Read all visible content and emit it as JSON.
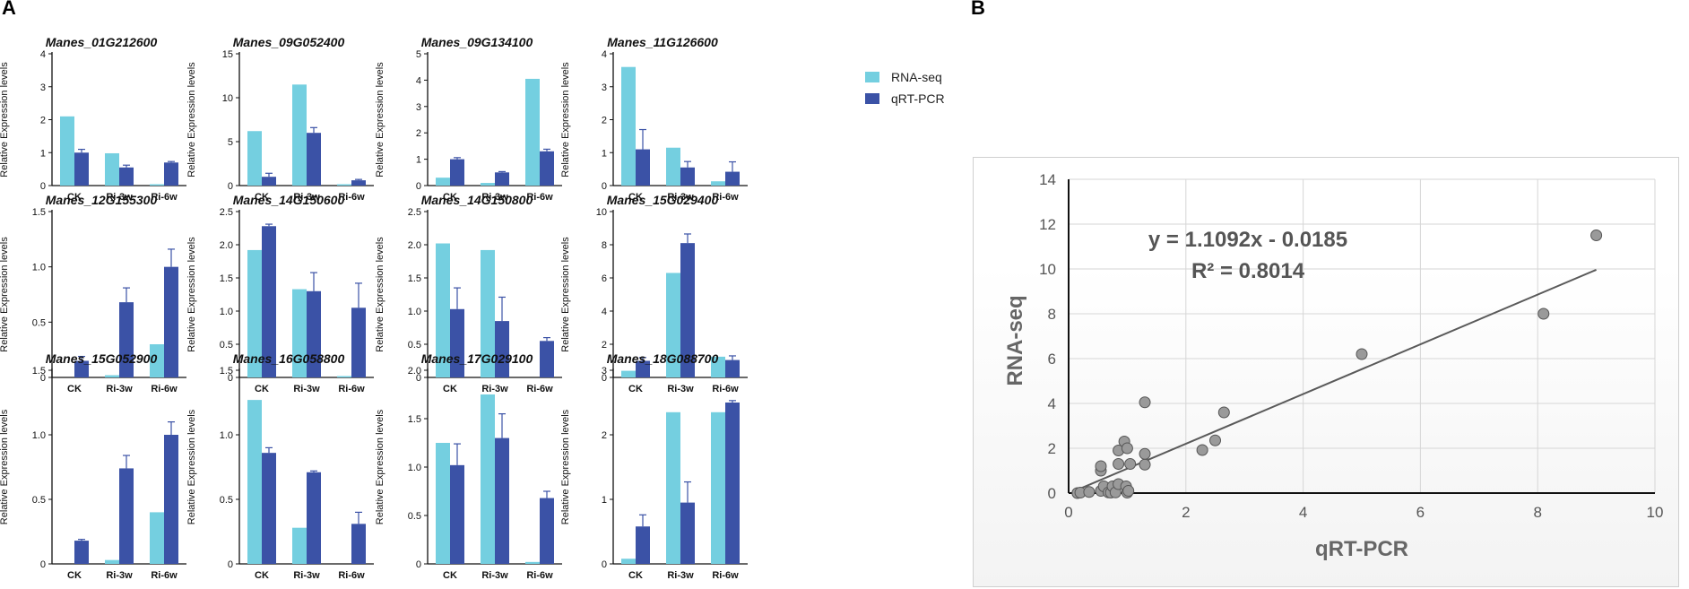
{
  "panel_a": {
    "label": "A"
  },
  "panel_b": {
    "label": "B"
  },
  "colors": {
    "rnaseq": "#74cfe0",
    "qrtpcr": "#3b52a6",
    "point": "#9a9a9a",
    "axis": "#111111"
  },
  "legend": {
    "rnaseq": "RNA-seq",
    "qrtpcr": "qRT-PCR"
  },
  "chart_data": [
    {
      "type": "bar",
      "title": "Manes_01G212600",
      "ylabel": "Relative Expression levels",
      "categories": [
        "CK",
        "Ri-3w",
        "Ri-6w"
      ],
      "ylim": [
        0,
        4
      ],
      "yticks": [
        0,
        1,
        2,
        3,
        4
      ],
      "series": [
        {
          "name": "RNA-seq",
          "values": [
            2.1,
            0.98,
            0.02
          ]
        },
        {
          "name": "qRT-PCR",
          "values": [
            1.0,
            0.55,
            0.7
          ],
          "errors": [
            0.1,
            0.07,
            0.03
          ]
        }
      ]
    },
    {
      "type": "bar",
      "title": "Manes_09G052400",
      "ylabel": "Relative Expression levels",
      "categories": [
        "CK",
        "Ri-3w",
        "Ri-6w"
      ],
      "ylim": [
        0,
        15
      ],
      "yticks": [
        0,
        5,
        10,
        15
      ],
      "series": [
        {
          "name": "RNA-seq",
          "values": [
            6.2,
            11.5,
            0.1
          ]
        },
        {
          "name": "qRT-PCR",
          "values": [
            1.0,
            6.0,
            0.6
          ],
          "errors": [
            0.4,
            0.6,
            0.1
          ]
        }
      ]
    },
    {
      "type": "bar",
      "title": "Manes_09G134100",
      "ylabel": "Relative Expression levels",
      "categories": [
        "CK",
        "Ri-3w",
        "Ri-6w"
      ],
      "ylim": [
        0,
        5
      ],
      "yticks": [
        0,
        1,
        2,
        3,
        4,
        5
      ],
      "series": [
        {
          "name": "RNA-seq",
          "values": [
            0.3,
            0.1,
            4.05
          ]
        },
        {
          "name": "qRT-PCR",
          "values": [
            1.0,
            0.5,
            1.3
          ],
          "errors": [
            0.06,
            0.03,
            0.08
          ]
        }
      ]
    },
    {
      "type": "bar",
      "title": "Manes_11G126600",
      "ylabel": "Relative Expression levels",
      "categories": [
        "CK",
        "Ri-3w",
        "Ri-6w"
      ],
      "ylim": [
        0,
        4
      ],
      "yticks": [
        0,
        1,
        2,
        3,
        4
      ],
      "series": [
        {
          "name": "RNA-seq",
          "values": [
            3.6,
            1.15,
            0.13
          ]
        },
        {
          "name": "qRT-PCR",
          "values": [
            1.1,
            0.55,
            0.42
          ],
          "errors": [
            0.6,
            0.18,
            0.3
          ]
        }
      ]
    },
    {
      "type": "bar",
      "title": "Manes_12G155300",
      "ylabel": "Relative Expression levels",
      "categories": [
        "CK",
        "Ri-3w",
        "Ri-6w"
      ],
      "ylim": [
        0,
        1.5
      ],
      "yticks": [
        0,
        0.5,
        1.0,
        1.5
      ],
      "series": [
        {
          "name": "RNA-seq",
          "values": [
            0.0,
            0.02,
            0.3
          ]
        },
        {
          "name": "qRT-PCR",
          "values": [
            0.15,
            0.68,
            1.0
          ],
          "errors": [
            0.04,
            0.13,
            0.16
          ]
        }
      ]
    },
    {
      "type": "bar",
      "title": "Manes_14G150600",
      "ylabel": "Relative Expression levels",
      "categories": [
        "CK",
        "Ri-3w",
        "Ri-6w"
      ],
      "ylim": [
        0,
        2.5
      ],
      "yticks": [
        0,
        0.5,
        1.0,
        1.5,
        2.0,
        2.5
      ],
      "series": [
        {
          "name": "RNA-seq",
          "values": [
            1.92,
            1.33,
            0.02
          ]
        },
        {
          "name": "qRT-PCR",
          "values": [
            2.28,
            1.3,
            1.05
          ],
          "errors": [
            0.03,
            0.28,
            0.37
          ]
        }
      ]
    },
    {
      "type": "bar",
      "title": "Manes_14G150800",
      "ylabel": "Relative Expression levels",
      "categories": [
        "CK",
        "Ri-3w",
        "Ri-6w"
      ],
      "ylim": [
        0,
        2.5
      ],
      "yticks": [
        0,
        0.5,
        1.0,
        1.5,
        2.0,
        2.5
      ],
      "series": [
        {
          "name": "RNA-seq",
          "values": [
            2.02,
            1.92,
            0.0
          ]
        },
        {
          "name": "qRT-PCR",
          "values": [
            1.03,
            0.85,
            0.55
          ],
          "errors": [
            0.32,
            0.36,
            0.05
          ]
        }
      ]
    },
    {
      "type": "bar",
      "title": "Manes_15G029400",
      "ylabel": "Relative Expression levels",
      "categories": [
        "CK",
        "Ri-3w",
        "Ri-6w"
      ],
      "ylim": [
        0,
        10
      ],
      "yticks": [
        0,
        2,
        4,
        6,
        8,
        10
      ],
      "series": [
        {
          "name": "RNA-seq",
          "values": [
            0.4,
            6.3,
            1.25
          ]
        },
        {
          "name": "qRT-PCR",
          "values": [
            1.0,
            8.1,
            1.05
          ],
          "errors": [
            0.2,
            0.55,
            0.25
          ]
        }
      ]
    },
    {
      "type": "bar",
      "title": "Manes_15G052900",
      "ylabel": "Relative Expression levels",
      "categories": [
        "CK",
        "Ri-3w",
        "Ri-6w"
      ],
      "ylim": [
        0,
        1.5
      ],
      "yticks": [
        0,
        0.5,
        1.0,
        1.5
      ],
      "series": [
        {
          "name": "RNA-seq",
          "values": [
            0.0,
            0.03,
            0.4
          ]
        },
        {
          "name": "qRT-PCR",
          "values": [
            0.18,
            0.74,
            1.0
          ],
          "errors": [
            0.01,
            0.1,
            0.1
          ]
        }
      ]
    },
    {
      "type": "bar",
      "title": "Manes_16G058800",
      "ylabel": "Relative Expression levels",
      "categories": [
        "CK",
        "Ri-3w",
        "Ri-6w"
      ],
      "ylim": [
        0,
        1.5
      ],
      "yticks": [
        0,
        0.5,
        1.0,
        1.5
      ],
      "series": [
        {
          "name": "RNA-seq",
          "values": [
            1.27,
            0.28,
            0.0
          ]
        },
        {
          "name": "qRT-PCR",
          "values": [
            0.86,
            0.71,
            0.31
          ],
          "errors": [
            0.04,
            0.01,
            0.09
          ]
        }
      ]
    },
    {
      "type": "bar",
      "title": "Manes_17G029100",
      "ylabel": "Relative Expression levels",
      "categories": [
        "CK",
        "Ri-3w",
        "Ri-6w"
      ],
      "ylim": [
        0,
        2.0
      ],
      "yticks": [
        0,
        0.5,
        1.0,
        1.5,
        2.0
      ],
      "series": [
        {
          "name": "RNA-seq",
          "values": [
            1.25,
            1.75,
            0.02
          ]
        },
        {
          "name": "qRT-PCR",
          "values": [
            1.02,
            1.3,
            0.68
          ],
          "errors": [
            0.22,
            0.25,
            0.07
          ]
        }
      ]
    },
    {
      "type": "bar",
      "title": "Manes_18G088700",
      "ylabel": "Relative Expression levels",
      "categories": [
        "CK",
        "Ri-3w",
        "Ri-6w"
      ],
      "ylim": [
        0,
        3
      ],
      "yticks": [
        0,
        1,
        2,
        3
      ],
      "series": [
        {
          "name": "RNA-seq",
          "values": [
            0.08,
            2.35,
            2.35
          ]
        },
        {
          "name": "qRT-PCR",
          "values": [
            0.58,
            0.95,
            2.5
          ],
          "errors": [
            0.18,
            0.32,
            0.03
          ]
        }
      ]
    },
    {
      "type": "scatter",
      "xlabel": "qRT-PCR",
      "ylabel": "RNA-seq",
      "xlim": [
        0,
        10
      ],
      "ylim": [
        0,
        14
      ],
      "xticks": [
        0,
        2,
        4,
        6,
        8,
        10
      ],
      "yticks": [
        0,
        2,
        4,
        6,
        8,
        10,
        12,
        14
      ],
      "grid": true,
      "equation": "y = 1.1092x - 0.0185",
      "r2": "R² = 0.8014",
      "trendline": {
        "slope": 1.1092,
        "intercept": -0.0185,
        "x_range": [
          0.15,
          9.0
        ]
      },
      "points": [
        [
          0.15,
          0.0
        ],
        [
          0.2,
          0.02
        ],
        [
          0.35,
          0.05
        ],
        [
          0.55,
          0.1
        ],
        [
          0.6,
          0.3
        ],
        [
          0.68,
          0.03
        ],
        [
          0.72,
          0.02
        ],
        [
          0.75,
          0.3
        ],
        [
          0.8,
          0.03
        ],
        [
          0.85,
          0.4
        ],
        [
          0.98,
          0.3
        ],
        [
          1.0,
          0.02
        ],
        [
          1.02,
          0.1
        ],
        [
          1.05,
          1.3
        ],
        [
          0.55,
          1.0
        ],
        [
          0.55,
          1.2
        ],
        [
          0.85,
          1.3
        ],
        [
          0.85,
          1.9
        ],
        [
          0.95,
          2.3
        ],
        [
          1.0,
          2.0
        ],
        [
          1.3,
          1.27
        ],
        [
          1.3,
          1.75
        ],
        [
          1.3,
          4.05
        ],
        [
          2.28,
          1.92
        ],
        [
          2.5,
          2.35
        ],
        [
          2.65,
          3.6
        ],
        [
          5.0,
          6.2
        ],
        [
          8.1,
          8.0
        ],
        [
          9.0,
          11.5
        ]
      ]
    }
  ]
}
